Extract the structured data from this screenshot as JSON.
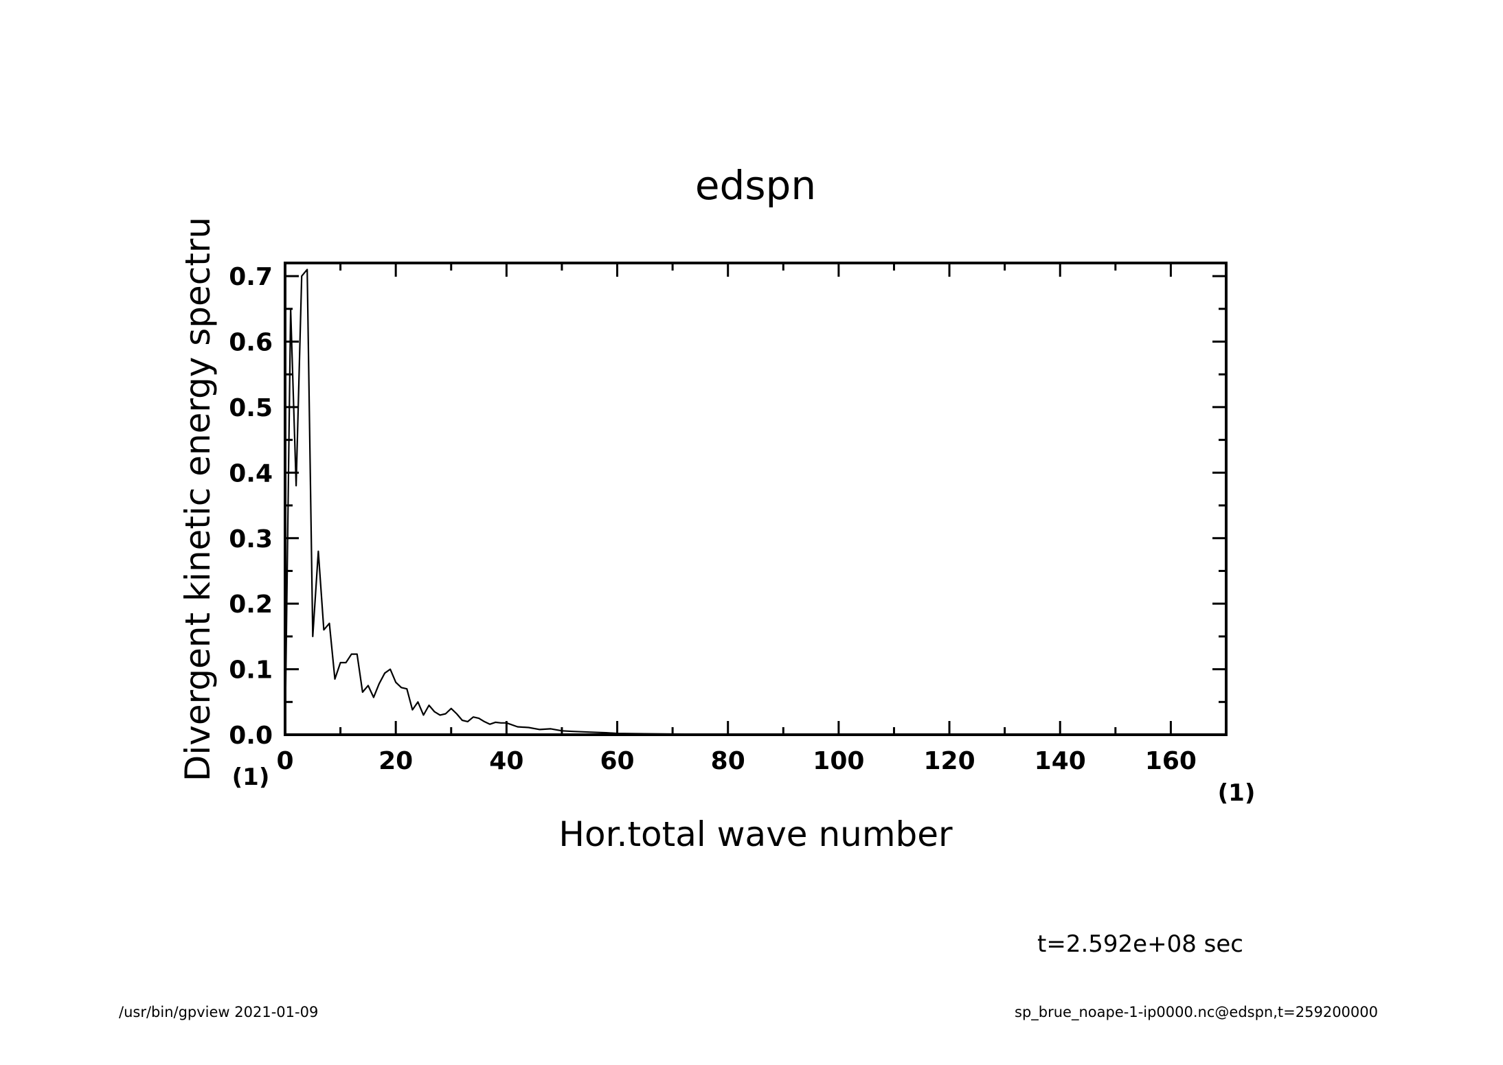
{
  "chart_data": {
    "type": "line",
    "title": "edspn",
    "xlabel": "Hor.total wave number",
    "ylabel": "Divergent kinetic energy spectru",
    "x_unit": "(1)",
    "y_unit": "(1)",
    "xlim": [
      0,
      170
    ],
    "ylim": [
      0,
      0.72
    ],
    "x_ticks": [
      0,
      20,
      40,
      60,
      80,
      100,
      120,
      140,
      160
    ],
    "x_tick_labels": [
      "0",
      "20",
      "40",
      "60",
      "80",
      "100",
      "120",
      "140",
      "160"
    ],
    "y_ticks": [
      0,
      0.1,
      0.2,
      0.3,
      0.4,
      0.5,
      0.6,
      0.7
    ],
    "y_tick_labels": [
      "0.0",
      "0.1",
      "0.2",
      "0.3",
      "0.4",
      "0.5",
      "0.6",
      "0.7"
    ],
    "grid": false,
    "series": [
      {
        "x": [
          0,
          1,
          2,
          3,
          4,
          5,
          6,
          7,
          8,
          9,
          10,
          11,
          12,
          13,
          14,
          15,
          16,
          17,
          18,
          19,
          20,
          21,
          22,
          23,
          24,
          25,
          26,
          27,
          28,
          29,
          30,
          31,
          32,
          33,
          34,
          35,
          36,
          37,
          38,
          39,
          40,
          42,
          44,
          46,
          48,
          50,
          52,
          55,
          58,
          60,
          65,
          70,
          80,
          90,
          100,
          120,
          140,
          160,
          170
        ],
        "y": [
          0,
          0.65,
          0.38,
          0.7,
          0.71,
          0.15,
          0.28,
          0.16,
          0.17,
          0.085,
          0.11,
          0.11,
          0.123,
          0.123,
          0.065,
          0.075,
          0.057,
          0.078,
          0.094,
          0.1,
          0.08,
          0.072,
          0.07,
          0.038,
          0.05,
          0.03,
          0.045,
          0.035,
          0.03,
          0.032,
          0.04,
          0.032,
          0.022,
          0.02,
          0.027,
          0.025,
          0.02,
          0.016,
          0.019,
          0.018,
          0.018,
          0.012,
          0.011,
          0.008,
          0.009,
          0.006,
          0.005,
          0.004,
          0.003,
          0.002,
          0.0015,
          0.001,
          0.0005,
          0.0003,
          0.0002,
          0.0001,
          0.0001,
          0.0001,
          0.0001
        ]
      }
    ],
    "annotation": "t=2.592e+08 sec"
  },
  "footer": {
    "left": "/usr/bin/gpview   2021-01-09",
    "right": "sp_brue_noape-1-ip0000.nc@edspn,t=259200000"
  }
}
